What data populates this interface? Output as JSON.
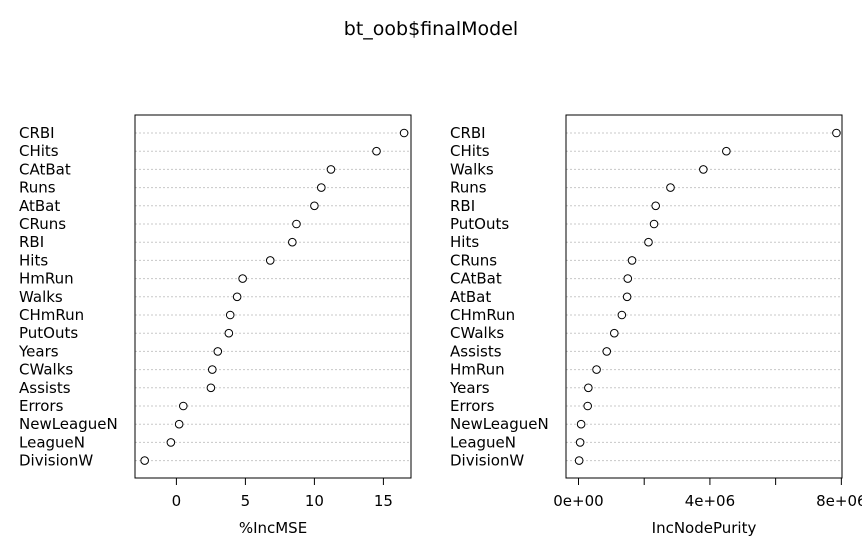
{
  "title": "bt_oob$finalModel",
  "chart_data": [
    {
      "type": "scatter",
      "xlabel": "%IncMSE",
      "xlim": [
        -3,
        17
      ],
      "xticks": [
        0,
        5,
        10,
        15
      ],
      "xtick_labels": [
        "0",
        "5",
        "10",
        "15"
      ],
      "categories": [
        "CRBI",
        "CHits",
        "CAtBat",
        "Runs",
        "AtBat",
        "CRuns",
        "RBI",
        "Hits",
        "HmRun",
        "Walks",
        "CHmRun",
        "PutOuts",
        "Years",
        "CWalks",
        "Assists",
        "Errors",
        "NewLeagueN",
        "LeagueN",
        "DivisionW"
      ],
      "values": [
        16.5,
        14.5,
        11.2,
        10.5,
        10.0,
        8.7,
        8.4,
        6.8,
        4.8,
        4.4,
        3.9,
        3.8,
        3.0,
        2.6,
        2.5,
        0.5,
        0.2,
        -0.4,
        -2.3
      ]
    },
    {
      "type": "scatter",
      "xlabel": "IncNodePurity",
      "xlim": [
        -380000,
        8020000
      ],
      "xticks": [
        0,
        2000000,
        4000000,
        6000000,
        8000000
      ],
      "xtick_labels": [
        "0e+00",
        "",
        "4e+06",
        "",
        "8e+06"
      ],
      "categories": [
        "CRBI",
        "CHits",
        "Walks",
        "Runs",
        "RBI",
        "PutOuts",
        "Hits",
        "CRuns",
        "CAtBat",
        "AtBat",
        "CHmRun",
        "CWalks",
        "Assists",
        "HmRun",
        "Years",
        "Errors",
        "NewLeagueN",
        "LeagueN",
        "DivisionW"
      ],
      "values": [
        7850000,
        4500000,
        3800000,
        2800000,
        2350000,
        2300000,
        2130000,
        1630000,
        1500000,
        1480000,
        1320000,
        1090000,
        860000,
        550000,
        300000,
        280000,
        80000,
        50000,
        20000
      ]
    }
  ]
}
